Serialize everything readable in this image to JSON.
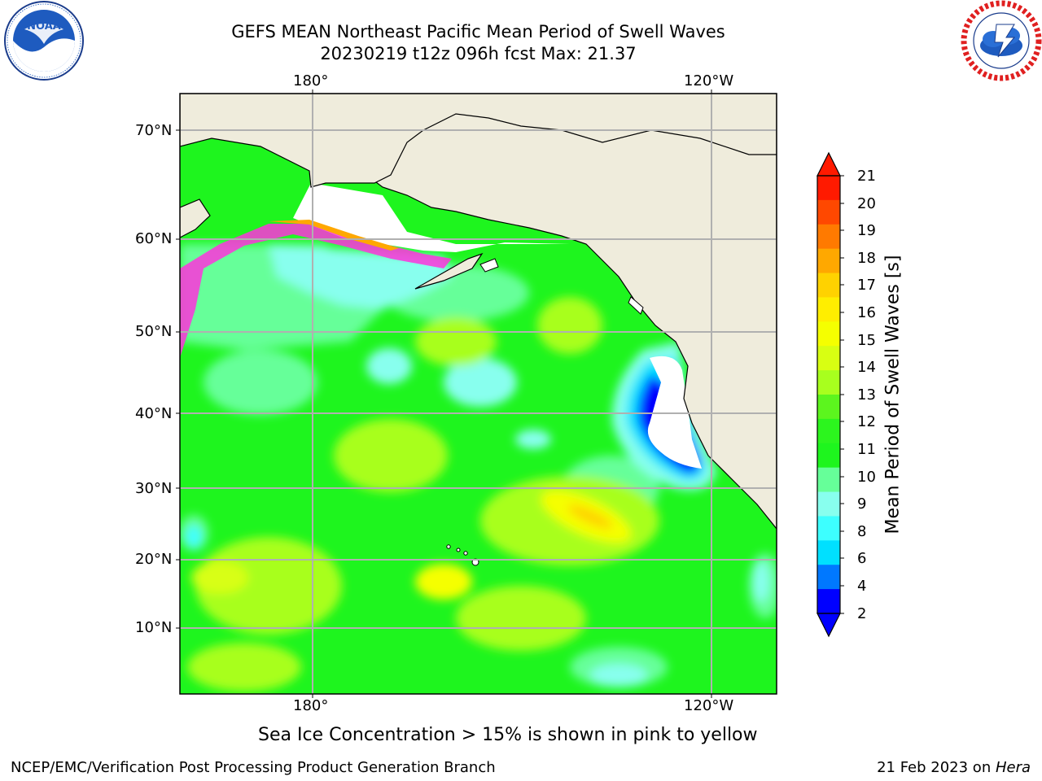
{
  "header": {
    "title_line1": "GEFS MEAN Northeast Pacific Mean Period of Swell Waves",
    "title_line2": "20230219 t12z 096h fcst   Max: 21.37"
  },
  "logos": {
    "left": {
      "name": "noaa-logo",
      "text": "NOAA",
      "ring_text": "NATIONAL OCEANIC AND ATMOSPHERIC ADMINISTRATION · U.S. DEPARTMENT OF COMMERCE"
    },
    "right": {
      "name": "nws-logo",
      "ring_text": "NATIONAL WEATHER SERVICE"
    }
  },
  "map": {
    "lon_labels_top": [
      "180°",
      "120°W"
    ],
    "lon_labels_bottom": [
      "180°",
      "120°W"
    ],
    "lat_labels": [
      "70°N",
      "60°N",
      "50°N",
      "40°N",
      "30°N",
      "20°N",
      "10°N"
    ],
    "colors": {
      "land": "#efecdc",
      "grid": "#b0b0b0",
      "ocean_base": "#1ef51e"
    }
  },
  "colorbar": {
    "label": "Mean Period of Swell Waves [s]",
    "ticks": [
      "21",
      "20",
      "19",
      "18",
      "17",
      "16",
      "15",
      "14",
      "13",
      "12",
      "11",
      "10",
      "9",
      "8",
      "6",
      "4",
      "2"
    ],
    "colors_top_to_bottom": [
      "#ff1a00",
      "#ff4800",
      "#ff7a00",
      "#ffa800",
      "#ffd200",
      "#ffee00",
      "#f5ff00",
      "#d8ff12",
      "#a8ff1e",
      "#5cf51e",
      "#2cf51e",
      "#1ef51e",
      "#66ff99",
      "#88ffee",
      "#3dffff",
      "#00e0ff",
      "#0078ff",
      "#0000ff"
    ],
    "extend_top_color": "#ff1a00",
    "extend_bottom_color": "#0000ff"
  },
  "footer": {
    "note": "Sea Ice Concentration > 15% is shown in pink to yellow",
    "left": "NCEP/EMC/Verification Post Processing Product Generation Branch",
    "right_prefix": "21 Feb 2023 on ",
    "right_host": "Hera"
  }
}
